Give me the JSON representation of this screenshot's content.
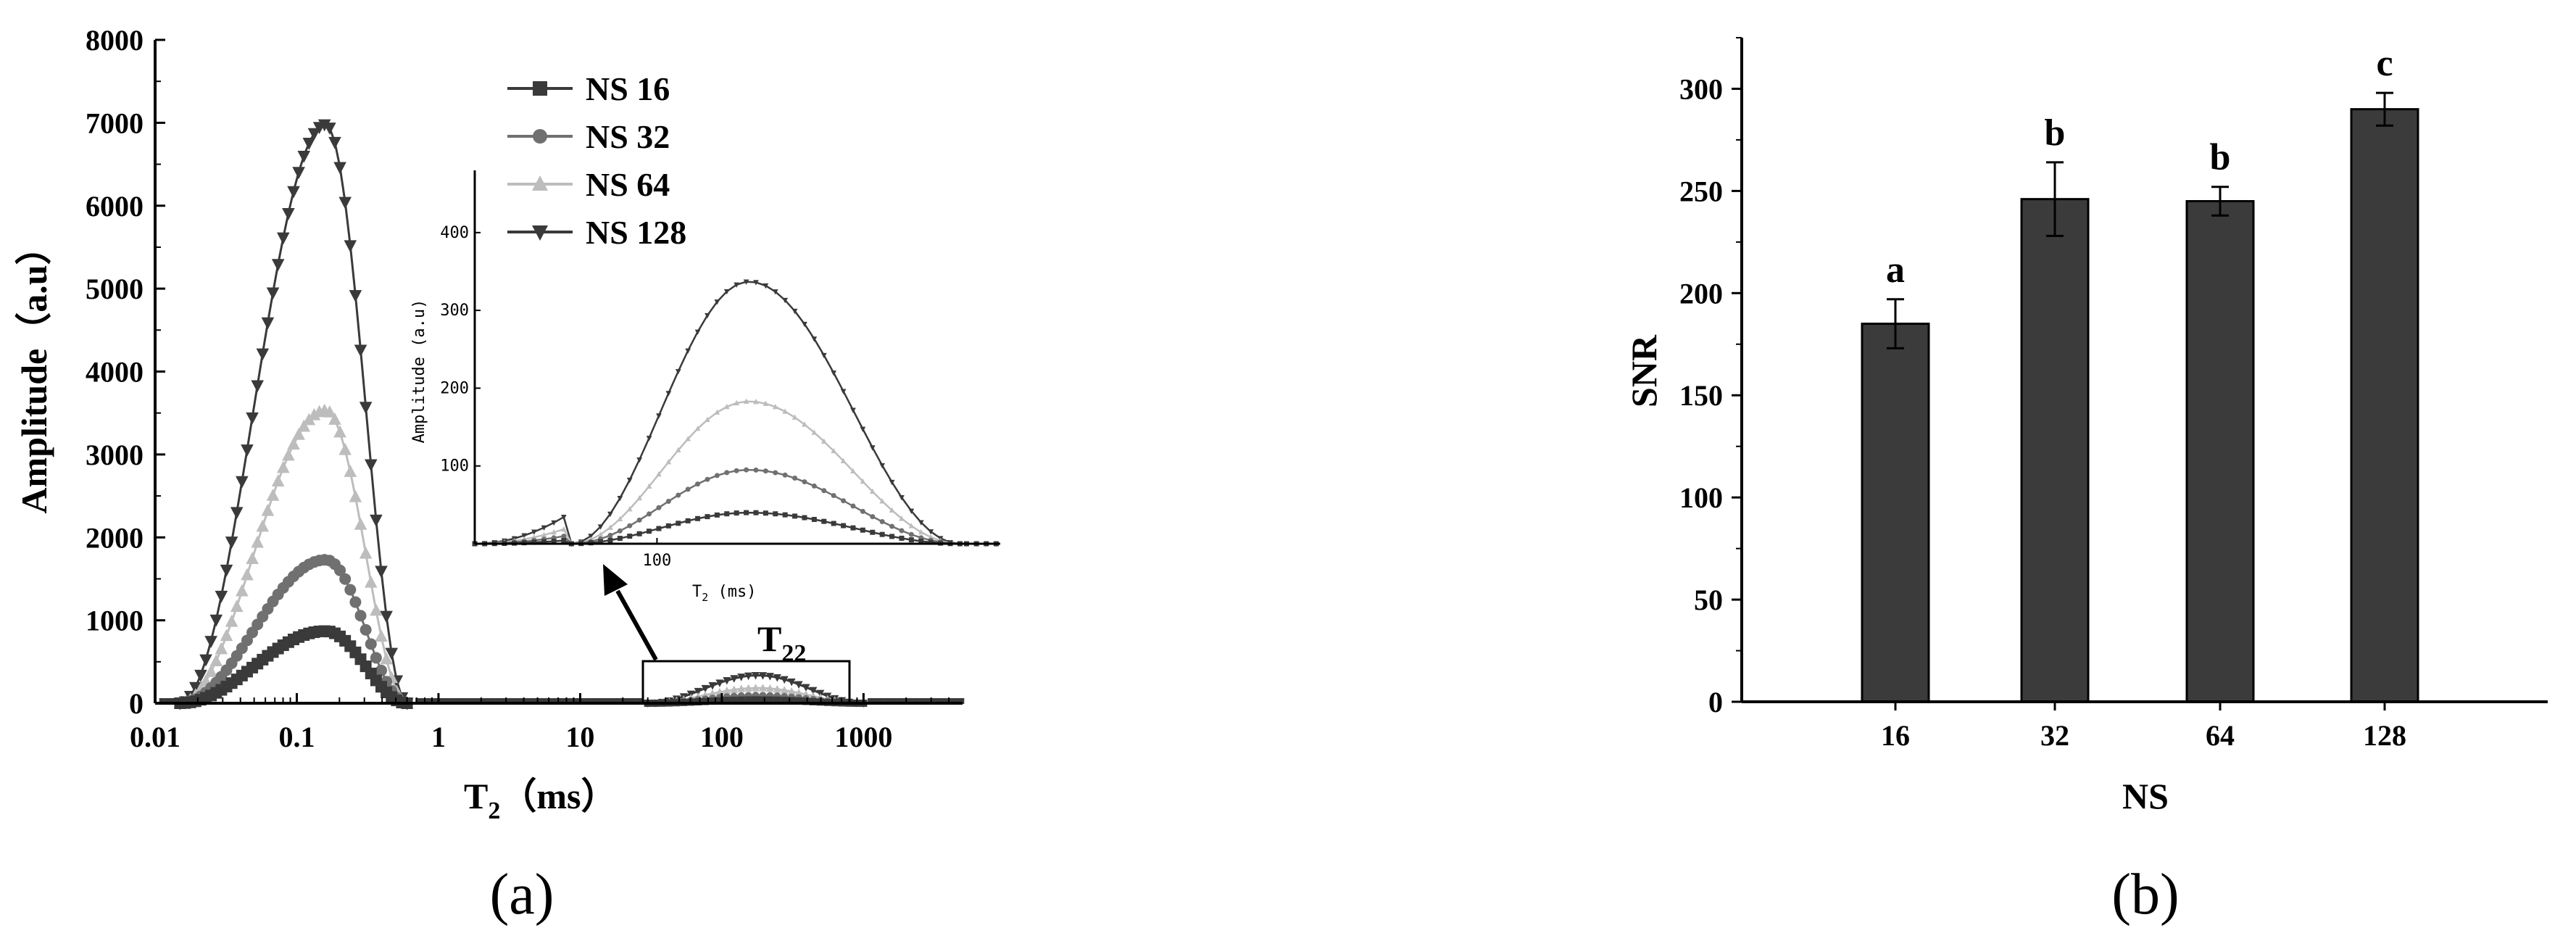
{
  "chart_data": [
    {
      "type": "line",
      "panel_label": "(a)",
      "ylabel": "Amplitude（a.u）",
      "xlabel_main": "T",
      "xlabel_sub": "2",
      "xlabel_unit": "（ms）",
      "x_scale": "log",
      "xlim": [
        0.01,
        5000
      ],
      "ylim": [
        0,
        8000
      ],
      "x_tick_labels": [
        "0.01",
        "0.1",
        "1",
        "10",
        "100",
        "1000"
      ],
      "y_tick_labels": [
        "0",
        "1000",
        "2000",
        "3000",
        "4000",
        "5000",
        "6000",
        "7000",
        "8000"
      ],
      "legend_position": "top-center",
      "series": [
        {
          "name": "NS 16",
          "marker": "square",
          "color": "#3a3a3a",
          "peak1_y": 870,
          "peak2_y": 40
        },
        {
          "name": "NS 32",
          "marker": "circle",
          "color": "#707070",
          "peak1_y": 1730,
          "peak2_y": 95
        },
        {
          "name": "NS 64",
          "marker": "triangle-up",
          "color": "#bdbdbd",
          "peak1_y": 3530,
          "peak2_y": 183
        },
        {
          "name": "NS 128",
          "marker": "triangle-down",
          "color": "#3a3a3a",
          "peak1_y": 6980,
          "peak2_y": 337
        }
      ],
      "peak1": {
        "x_center": 0.16,
        "x_start": 0.015,
        "x_end": 0.6
      },
      "peak2": {
        "x_center": 180,
        "x_start": 30,
        "x_end": 1000
      },
      "annotation": {
        "main": "T",
        "sub": "22"
      },
      "inset": {
        "ylabel": "Amplitude (a.u)",
        "xlabel_main": "T",
        "xlabel_sub": "2",
        "xlabel_unit": " (ms)",
        "x_tick_labels": [
          "100"
        ],
        "y_tick_labels": [
          "100",
          "200",
          "300",
          "400"
        ],
        "ylim": [
          0,
          480
        ]
      }
    },
    {
      "type": "bar",
      "panel_label": "(b)",
      "categories": [
        "16",
        "32",
        "64",
        "128"
      ],
      "values": [
        185,
        246,
        245,
        290
      ],
      "errors": [
        12,
        18,
        7,
        8
      ],
      "significance": [
        "a",
        "b",
        "b",
        "c"
      ],
      "xlabel": "NS",
      "ylabel": "SNR",
      "ylim": [
        0,
        325
      ],
      "y_tick_labels": [
        "0",
        "50",
        "100",
        "150",
        "200",
        "250",
        "300"
      ],
      "bar_color": "#3b3b3b"
    }
  ]
}
